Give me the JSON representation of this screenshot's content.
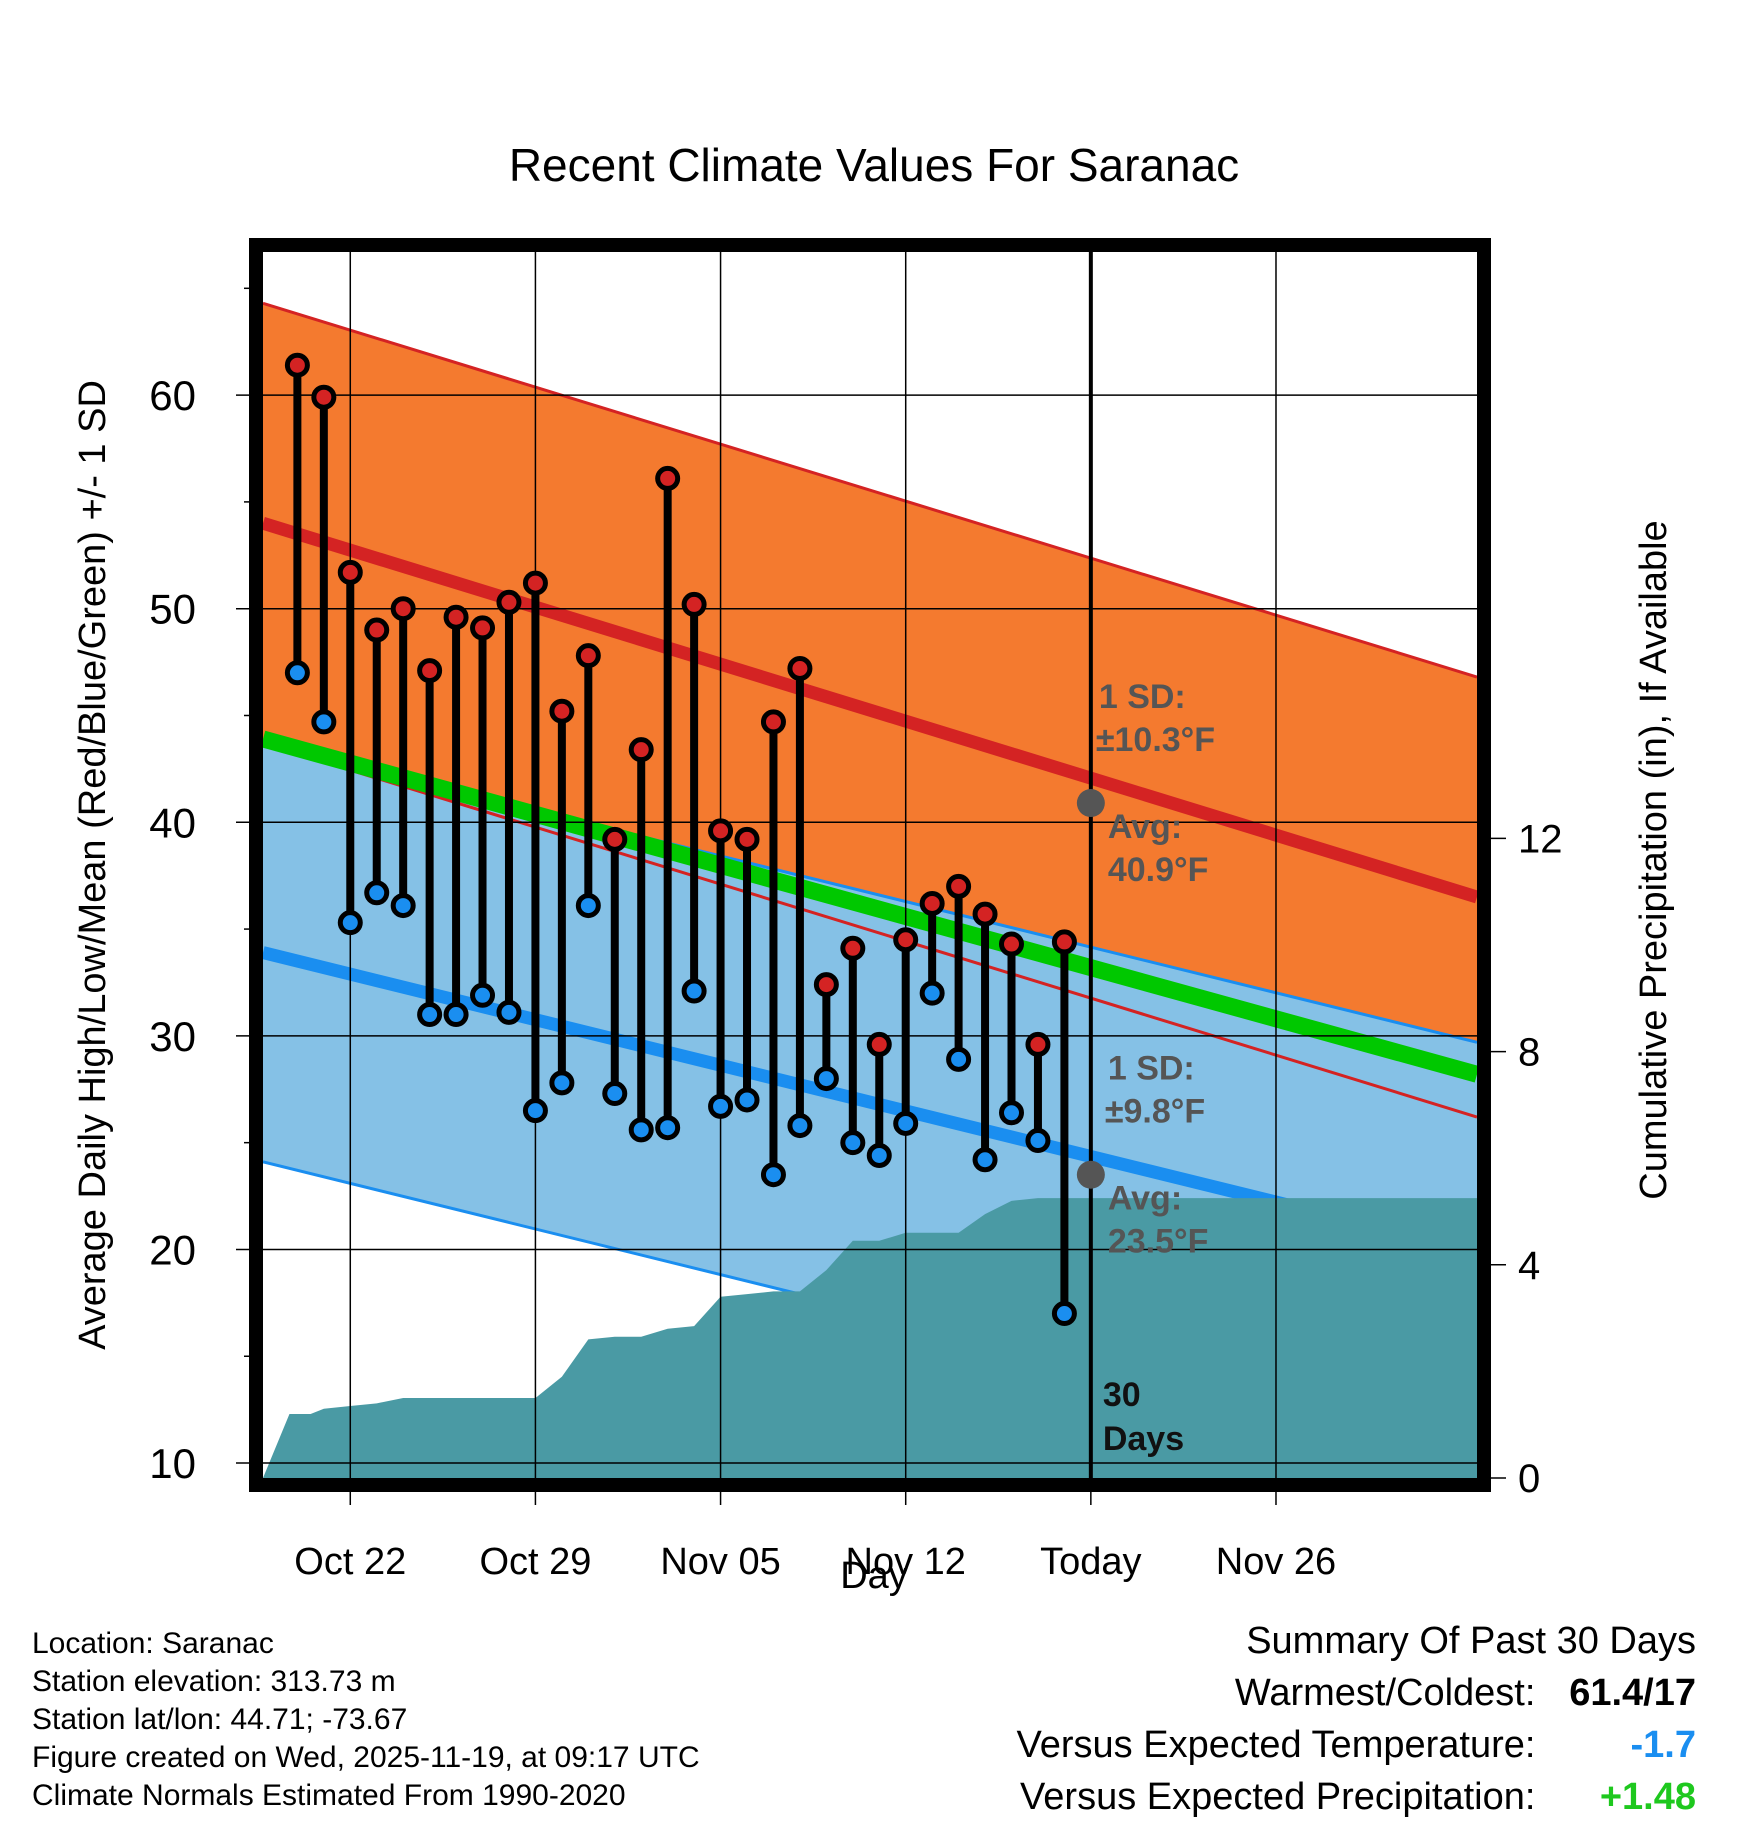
{
  "chart_data": {
    "type": "line",
    "title": "Recent Climate Values For Saranac",
    "xlabel": "Day",
    "ylabel_left": "Average Daily High/Low/Mean (Red/Blue/Green) +/- 1 SD",
    "ylabel_right": "Cumulative Precipitation (in), If Available",
    "x_day_range": [
      -3.3,
      42.6
    ],
    "ylim": [
      9.3,
      66.7
    ],
    "y_ticks": [
      10,
      20,
      30,
      40,
      50,
      60
    ],
    "y2lim": [
      0,
      23
    ],
    "y2_ticks": [
      0,
      4,
      8,
      12
    ],
    "x_ticks": [
      {
        "day": 0,
        "label": "Oct 22"
      },
      {
        "day": 7,
        "label": "Oct 29"
      },
      {
        "day": 14,
        "label": "Nov 05"
      },
      {
        "day": 21,
        "label": "Nov 12"
      },
      {
        "day": 28,
        "label": "Today"
      },
      {
        "day": 35,
        "label": "Nov 26"
      }
    ],
    "today_day": 28,
    "normals": {
      "high": {
        "start": 54.0,
        "end": 36.5,
        "sd": 10.3
      },
      "low": {
        "start": 33.9,
        "end": 19.9,
        "sd": 9.8
      },
      "mean": {
        "start": 43.9,
        "end": 28.2
      }
    },
    "observations": [
      {
        "day": -2,
        "high": 61.4,
        "low": 47.0
      },
      {
        "day": -1,
        "high": 59.9,
        "low": 44.7
      },
      {
        "day": 0,
        "high": 51.7,
        "low": 35.3
      },
      {
        "day": 1,
        "high": 49.0,
        "low": 36.7
      },
      {
        "day": 2,
        "high": 50.0,
        "low": 36.1
      },
      {
        "day": 3,
        "high": 47.1,
        "low": 31.0
      },
      {
        "day": 4,
        "high": 49.6,
        "low": 31.0
      },
      {
        "day": 5,
        "high": 49.1,
        "low": 31.9
      },
      {
        "day": 6,
        "high": 50.3,
        "low": 31.1
      },
      {
        "day": 7,
        "high": 51.2,
        "low": 26.5
      },
      {
        "day": 8,
        "high": 45.2,
        "low": 27.8
      },
      {
        "day": 9,
        "high": 47.8,
        "low": 36.1
      },
      {
        "day": 10,
        "high": 39.2,
        "low": 27.3
      },
      {
        "day": 11,
        "high": 43.4,
        "low": 25.6
      },
      {
        "day": 12,
        "high": 56.1,
        "low": 25.7
      },
      {
        "day": 13,
        "high": 50.2,
        "low": 32.1
      },
      {
        "day": 14,
        "high": 39.6,
        "low": 26.7
      },
      {
        "day": 15,
        "high": 39.2,
        "low": 27.0
      },
      {
        "day": 16,
        "high": 44.7,
        "low": 23.5
      },
      {
        "day": 17,
        "high": 47.2,
        "low": 25.8
      },
      {
        "day": 18,
        "high": 32.4,
        "low": 28.0
      },
      {
        "day": 19,
        "high": 34.1,
        "low": 25.0
      },
      {
        "day": 20,
        "high": 29.6,
        "low": 24.4
      },
      {
        "day": 21,
        "high": 34.5,
        "low": 25.9
      },
      {
        "day": 22,
        "high": 36.2,
        "low": 32.0
      },
      {
        "day": 23,
        "high": 37.0,
        "low": 28.9
      },
      {
        "day": 24,
        "high": 35.7,
        "low": 24.2
      },
      {
        "day": 25,
        "high": 34.3,
        "low": 26.4
      },
      {
        "day": 26,
        "high": 29.6,
        "low": 25.1
      },
      {
        "day": 27,
        "high": 34.4,
        "low": 17.0
      }
    ],
    "precip_cumulative": [
      {
        "day": -3.3,
        "value": 0.0
      },
      {
        "day": -2.3,
        "value": 1.2
      },
      {
        "day": -1.5,
        "value": 1.2
      },
      {
        "day": -1,
        "value": 1.3
      },
      {
        "day": 0,
        "value": 1.35
      },
      {
        "day": 1,
        "value": 1.4
      },
      {
        "day": 2,
        "value": 1.5
      },
      {
        "day": 3,
        "value": 1.5
      },
      {
        "day": 4,
        "value": 1.5
      },
      {
        "day": 5,
        "value": 1.5
      },
      {
        "day": 6,
        "value": 1.5
      },
      {
        "day": 7,
        "value": 1.5
      },
      {
        "day": 8,
        "value": 1.9
      },
      {
        "day": 9,
        "value": 2.6
      },
      {
        "day": 10,
        "value": 2.65
      },
      {
        "day": 11,
        "value": 2.65
      },
      {
        "day": 12,
        "value": 2.8
      },
      {
        "day": 13,
        "value": 2.85
      },
      {
        "day": 14,
        "value": 3.4
      },
      {
        "day": 15,
        "value": 3.45
      },
      {
        "day": 16,
        "value": 3.5
      },
      {
        "day": 17,
        "value": 3.5
      },
      {
        "day": 18,
        "value": 3.9
      },
      {
        "day": 19,
        "value": 4.45
      },
      {
        "day": 20,
        "value": 4.45
      },
      {
        "day": 21,
        "value": 4.6
      },
      {
        "day": 22,
        "value": 4.6
      },
      {
        "day": 23,
        "value": 4.6
      },
      {
        "day": 24,
        "value": 4.95
      },
      {
        "day": 25,
        "value": 5.2
      },
      {
        "day": 26,
        "value": 5.25
      },
      {
        "day": 28,
        "value": 5.25
      },
      {
        "day": 42.6,
        "value": 5.25
      }
    ],
    "annotations": {
      "high_sd_label1": "1 SD:",
      "high_sd_label2": "±10.3°F",
      "high_avg_label1": "Avg:",
      "high_avg_label2": "40.9°F",
      "high_avg_value": 40.9,
      "low_sd_label1": "1 SD:",
      "low_sd_label2": "±9.8°F",
      "low_avg_label1": "Avg:",
      "low_avg_label2": "23.5°F",
      "low_avg_value": 23.5,
      "days_label1": "30",
      "days_label2": "Days"
    },
    "colors": {
      "high_band": "#f47a2f",
      "high_line": "#d42323",
      "low_band": "#85c1e6",
      "low_line": "#1a8ef0",
      "mean_line": "#00c800",
      "overlap": "#9c1212",
      "precip": "#4a9aa4",
      "high_marker": "#d42323",
      "low_marker": "#1a8ef0",
      "avg_marker": "#555555",
      "annotation_text": "#555555"
    }
  },
  "info": {
    "location": "Location: Saranac",
    "elevation": "Station elevation: 313.73 m",
    "latlon": "Station lat/lon: 44.71; -73.67",
    "created": "Figure created on Wed, 2025-11-19, at 09:17 UTC",
    "normals": "Climate Normals Estimated From 1990-2020"
  },
  "summary": {
    "title": "Summary Of Past 30 Days",
    "warmest_label": "Warmest/Coldest:",
    "warmest_value": "61.4/17",
    "temp_label": "Versus Expected Temperature:",
    "temp_value": "-1.7",
    "temp_color": "#1a8ef0",
    "precip_label": "Versus Expected Precipitation:",
    "precip_value": "+1.48",
    "precip_color": "#1ec81e"
  }
}
